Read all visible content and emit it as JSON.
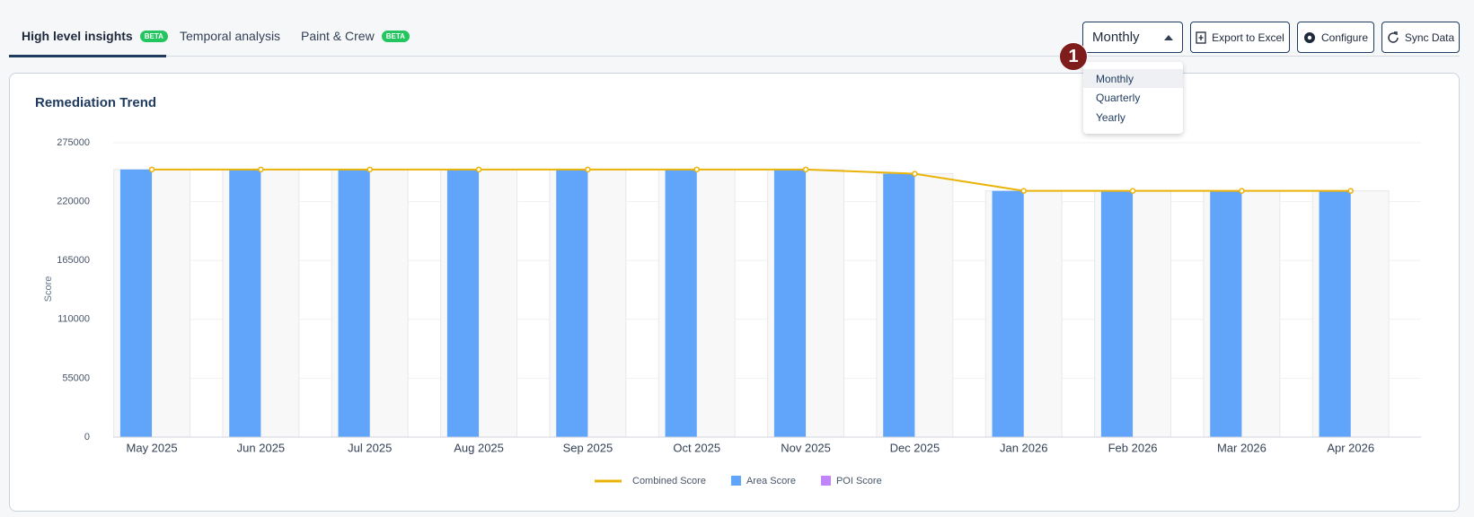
{
  "tabs": [
    {
      "label": "High level insights",
      "badge": "BETA"
    },
    {
      "label": "Temporal analysis"
    },
    {
      "label": "Paint & Crew",
      "badge": "BETA"
    }
  ],
  "period_select": {
    "value": "Monthly",
    "options": [
      "Monthly",
      "Quarterly",
      "Yearly"
    ]
  },
  "annotation_badge": "1",
  "buttons": [
    "Export to Excel",
    "Configure",
    "Sync Data"
  ],
  "chart_data": {
    "type": "bar",
    "title": "Remediation Trend",
    "y_label": "Score",
    "categories": [
      "May 2025",
      "Jun 2025",
      "Jul 2025",
      "Aug 2025",
      "Sep 2025",
      "Oct 2025",
      "Nov 2025",
      "Dec 2025",
      "Jan 2026",
      "Feb 2026",
      "Mar 2026",
      "Apr 2026"
    ],
    "series": [
      {
        "name": "Combined Score",
        "type": "line",
        "color": "#eab308",
        "values": [
          250000,
          250000,
          250000,
          250000,
          250000,
          250000,
          250000,
          246000,
          230000,
          230000,
          230000,
          230000
        ]
      },
      {
        "name": "Area Score",
        "type": "bar",
        "color": "#60a5fa",
        "values": [
          250000,
          250000,
          250000,
          250000,
          250000,
          250000,
          250000,
          246000,
          230000,
          230000,
          230000,
          230000
        ]
      },
      {
        "name": "POI Score",
        "type": "bar",
        "color": "#c084fc",
        "values": [
          0,
          0,
          0,
          0,
          0,
          0,
          0,
          0,
          0,
          0,
          0,
          0
        ]
      }
    ],
    "ylim": [
      0,
      275000
    ],
    "yticks": [
      0,
      55000,
      110000,
      165000,
      220000,
      275000
    ],
    "grid": true,
    "legend": "bottom"
  }
}
